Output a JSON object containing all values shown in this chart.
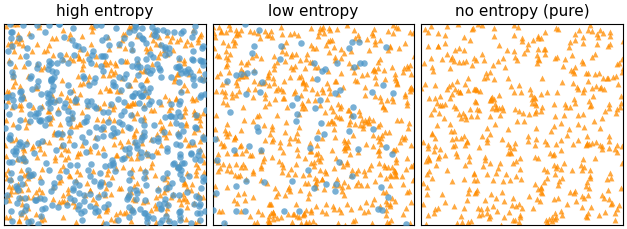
{
  "titles": [
    "high entropy",
    "low entropy",
    "no entropy (pure)"
  ],
  "n_orange_high": 500,
  "n_blue_high": 500,
  "n_orange_low": 600,
  "n_blue_low": 80,
  "n_orange_pure": 500,
  "n_blue_pure": 0,
  "color_orange": "#FF8C00",
  "color_blue": "#4C96C8",
  "marker_orange": "^",
  "marker_blue": "o",
  "marker_size_orange": 18,
  "marker_size_blue": 22,
  "alpha_orange": 0.75,
  "alpha_blue": 0.75,
  "seed": 42,
  "xlim": [
    0,
    1
  ],
  "ylim": [
    0,
    1
  ],
  "figsize": [
    6.27,
    2.3
  ],
  "dpi": 100,
  "title_fontsize": 11
}
